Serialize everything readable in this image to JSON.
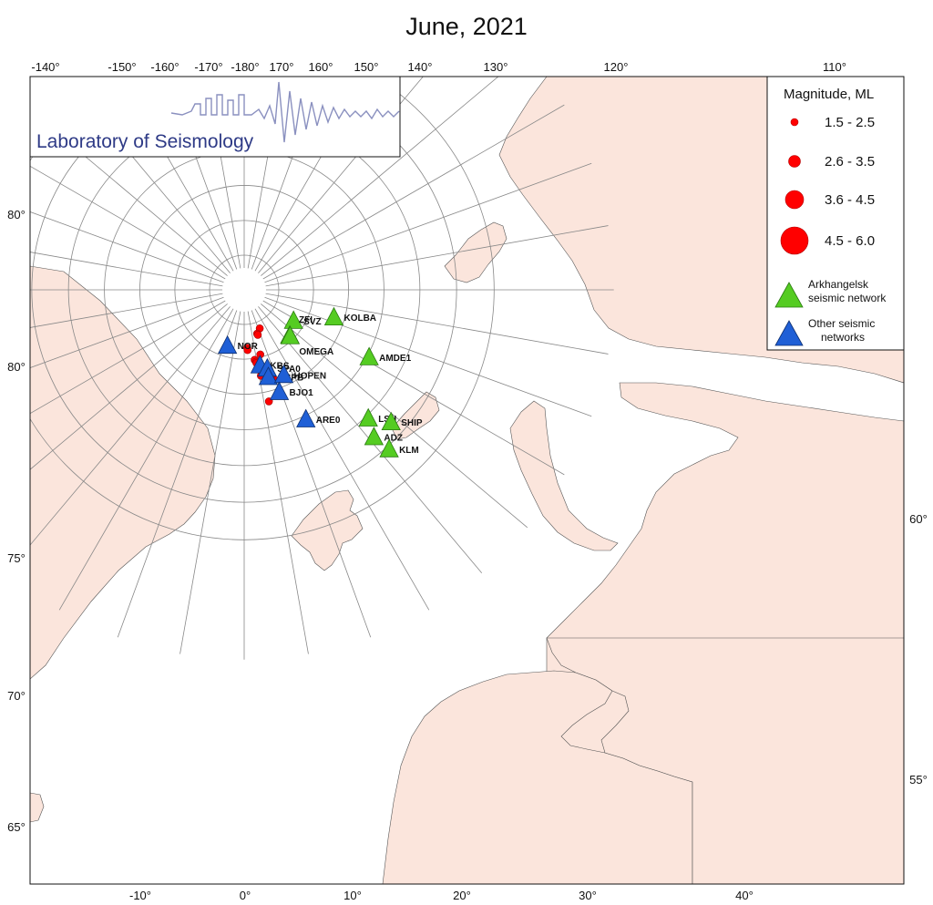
{
  "title": "June, 2021",
  "logo_text": "Laboratory of Seismology",
  "colors": {
    "land": "#fbe5dc",
    "sea": "#ffffff",
    "grid": "#888888",
    "event": "#ff0000",
    "arkhangelsk": "#55cc22",
    "other": "#1f5fd6",
    "logo": "#2e3a86"
  },
  "ticks_top": [
    "-140°",
    "-150°",
    "-160°",
    "-170°",
    "-180°",
    "170°",
    "160°",
    "150°",
    "140°",
    "130°",
    "120°",
    "110°"
  ],
  "ticks_bottom": [
    "-10°",
    "0°",
    "10°",
    "20°",
    "30°",
    "40°"
  ],
  "ticks_left": [
    "80°",
    "80°",
    "75°",
    "70°",
    "65°"
  ],
  "ticks_right": [
    "60°",
    "55°"
  ],
  "legend": {
    "title": "Magnitude, ML",
    "ranges": [
      "1.5 - 2.5",
      "2.6 - 3.5",
      "3.6 - 4.5",
      "4.5 - 6.0"
    ],
    "net_arkhangelsk_line1": "Arkhangelsk",
    "net_arkhangelsk_line2": "seismic network",
    "net_other_line1": "Other seismic",
    "net_other_line2": "networks"
  },
  "stations": [
    {
      "code": "SVZ",
      "network": "arkhangelsk",
      "lon": 58.0,
      "lat": 81.6
    },
    {
      "code": "KOLBA",
      "network": "arkhangelsk",
      "lon": 73.0,
      "lat": 76.5
    },
    {
      "code": "ZFI",
      "network": "arkhangelsk",
      "lon": 45.0,
      "lat": 80.7
    },
    {
      "code": "OMEGA",
      "network": "arkhangelsk",
      "lon": 44.8,
      "lat": 80.6
    },
    {
      "code": "AMDE1",
      "network": "arkhangelsk",
      "lon": 61.7,
      "lat": 69.7
    },
    {
      "code": "LSH",
      "network": "arkhangelsk",
      "lon": 44.0,
      "lat": 64.6
    },
    {
      "code": "SHIP",
      "network": "arkhangelsk",
      "lon": 48.0,
      "lat": 62.0
    },
    {
      "code": "ADZ",
      "network": "arkhangelsk",
      "lon": 41.4,
      "lat": 62.2
    },
    {
      "code": "KLM",
      "network": "arkhangelsk",
      "lon": 42.3,
      "lat": 59.6
    },
    {
      "code": "NOR",
      "network": "other",
      "lon": -16.7,
      "lat": 81.6
    },
    {
      "code": "KBS",
      "network": "other",
      "lon": 11.9,
      "lat": 78.9
    },
    {
      "code": "SPA0",
      "network": "other",
      "lon": 16.4,
      "lat": 78.2
    },
    {
      "code": "HSPB",
      "network": "other",
      "lon": 15.5,
      "lat": 77.0
    },
    {
      "code": "HOPEN",
      "network": "other",
      "lon": 25.0,
      "lat": 76.5
    },
    {
      "code": "BJO1",
      "network": "other",
      "lon": 19.0,
      "lat": 74.5
    },
    {
      "code": "ARE0",
      "network": "other",
      "lon": 25.5,
      "lat": 69.5
    }
  ],
  "events": [
    {
      "lon": 22.0,
      "lat": 84.0,
      "ml": 2.0
    },
    {
      "lon": 16.5,
      "lat": 83.4,
      "ml": 1.8
    },
    {
      "lon": 16.8,
      "lat": 83.2,
      "ml": 2.3
    },
    {
      "lon": 3.0,
      "lat": 81.6,
      "ml": 2.3
    },
    {
      "lon": 3.2,
      "lat": 81.3,
      "ml": 2.3
    },
    {
      "lon": 14.0,
      "lat": 80.4,
      "ml": 2.3
    },
    {
      "lon": 8.5,
      "lat": 79.8,
      "ml": 2.3
    },
    {
      "lon": 9.3,
      "lat": 79.5,
      "ml": 2.3
    },
    {
      "lon": 9.5,
      "lat": 79.3,
      "ml": 2.3
    },
    {
      "lon": 11.5,
      "lat": 78.4,
      "ml": 2.3
    },
    {
      "lon": 11.8,
      "lat": 78.3,
      "ml": 2.3
    },
    {
      "lon": 14.0,
      "lat": 77.7,
      "ml": 2.3
    },
    {
      "lon": 11.0,
      "lat": 77.4,
      "ml": 2.3
    },
    {
      "lon": 18.5,
      "lat": 77.3,
      "ml": 1.6
    },
    {
      "lon": 17.5,
      "lat": 76.8,
      "ml": 2.3
    },
    {
      "lon": 19.5,
      "lat": 76.4,
      "ml": 1.6
    },
    {
      "lon": 12.5,
      "lat": 73.6,
      "ml": 2.3
    }
  ]
}
